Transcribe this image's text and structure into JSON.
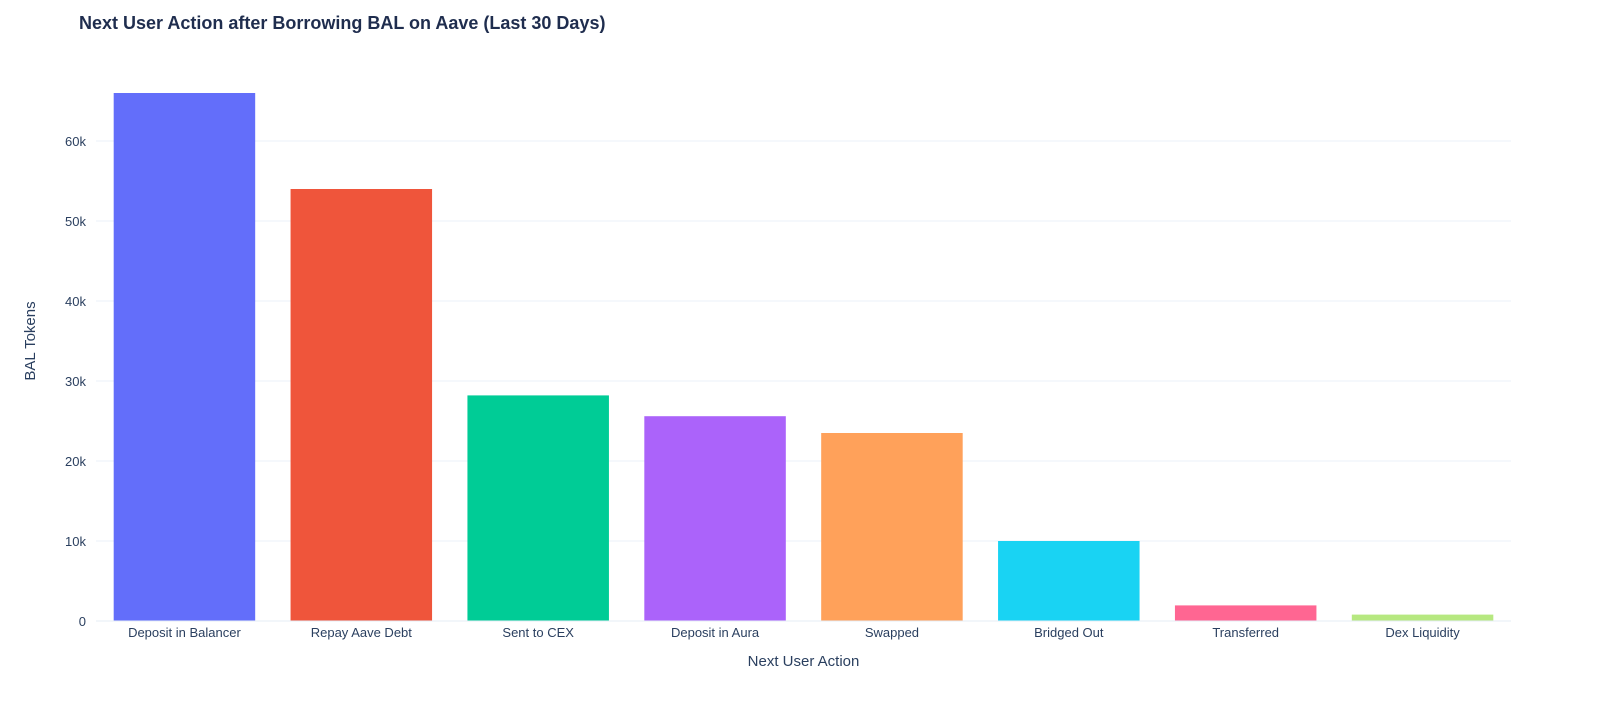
{
  "chart_data": {
    "type": "bar",
    "title": "Next User Action after Borrowing BAL on Aave (Last 30 Days)",
    "xlabel": "Next User Action",
    "ylabel": "BAL Tokens",
    "categories": [
      "Deposit in Balancer",
      "Repay Aave Debt",
      "Sent to CEX",
      "Deposit in Aura",
      "Swapped",
      "Bridged Out",
      "Transferred",
      "Dex Liquidity"
    ],
    "values": [
      66000,
      54000,
      28200,
      25600,
      23500,
      10000,
      1950,
      800
    ],
    "colors": [
      "#636efa",
      "#ef553b",
      "#00cc96",
      "#ab63fa",
      "#ffa15a",
      "#19d3f3",
      "#ff6692",
      "#b6e880"
    ],
    "ylim": [
      0,
      70000
    ],
    "yticks": [
      0,
      10000,
      20000,
      30000,
      40000,
      50000,
      60000
    ],
    "ytick_labels": [
      "0",
      "10k",
      "20k",
      "30k",
      "40k",
      "50k",
      "60k"
    ],
    "grid": true,
    "legend": "none"
  }
}
